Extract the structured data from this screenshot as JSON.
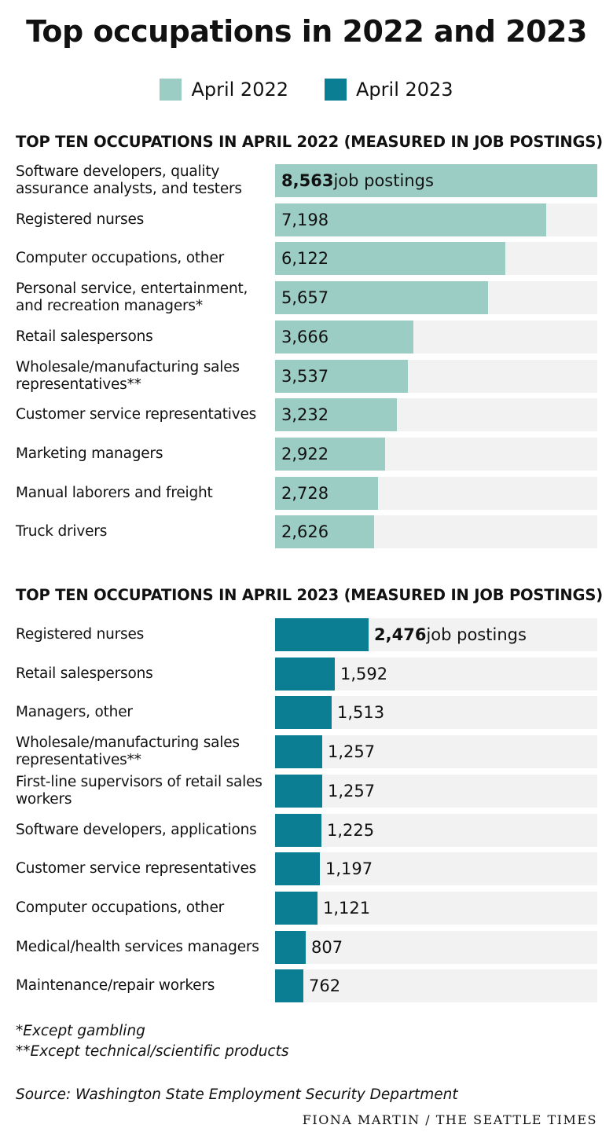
{
  "title": "Top occupations in 2022 and 2023",
  "legend": [
    {
      "label": "April 2022",
      "color": "#9bcdc5"
    },
    {
      "label": "April 2023",
      "color": "#0b7e93"
    }
  ],
  "chart_data": [
    {
      "type": "bar",
      "title": "TOP TEN OCCUPATIONS IN APRIL 2022 (MEASURED IN JOB POSTINGS)",
      "series_name": "April 2022",
      "color": "#9bcdc5",
      "value_unit_label": "job postings",
      "categories": [
        "Software developers, quality assurance analysts, and testers",
        "Registered nurses",
        "Computer occupations, other",
        "Personal service, entertainment, and recreation managers*",
        "Retail salespersons",
        "Wholesale/manufacturing sales representatives**",
        "Customer service representatives",
        "Marketing managers",
        "Manual laborers and freight",
        "Truck drivers"
      ],
      "values": [
        8563,
        7198,
        6122,
        5657,
        3666,
        3537,
        3232,
        2922,
        2728,
        2626
      ],
      "labels": [
        "8,563",
        "7,198",
        "6,122",
        "5,657",
        "3,666",
        "3,537",
        "3,232",
        "2,922",
        "2,728",
        "2,626"
      ],
      "xlim": [
        0,
        8563
      ]
    },
    {
      "type": "bar",
      "title": "TOP TEN OCCUPATIONS IN APRIL 2023 (MEASURED IN JOB POSTINGS)",
      "series_name": "April 2023",
      "color": "#0b7e93",
      "value_unit_label": "job postings",
      "categories": [
        "Registered nurses",
        "Retail salespersons",
        "Managers, other",
        "Wholesale/manufacturing sales representatives**",
        "First-line supervisors of retail sales workers",
        "Software developers, applications",
        "Customer service representatives",
        "Computer occupations, other",
        "Medical/health services managers",
        "Maintenance/repair workers"
      ],
      "values": [
        2476,
        1592,
        1513,
        1257,
        1257,
        1225,
        1197,
        1121,
        807,
        762
      ],
      "labels": [
        "2,476",
        "1,592",
        "1,513",
        "1,257",
        "1,257",
        "1,225",
        "1,197",
        "1,121",
        "807",
        "762"
      ],
      "xlim": [
        0,
        8563
      ]
    }
  ],
  "footnotes": [
    "*Except gambling",
    "**Except technical/scientific products"
  ],
  "source": "Source: Washington State Employment Security Department",
  "credit": "FIONA MARTIN / THE SEATTLE TIMES"
}
